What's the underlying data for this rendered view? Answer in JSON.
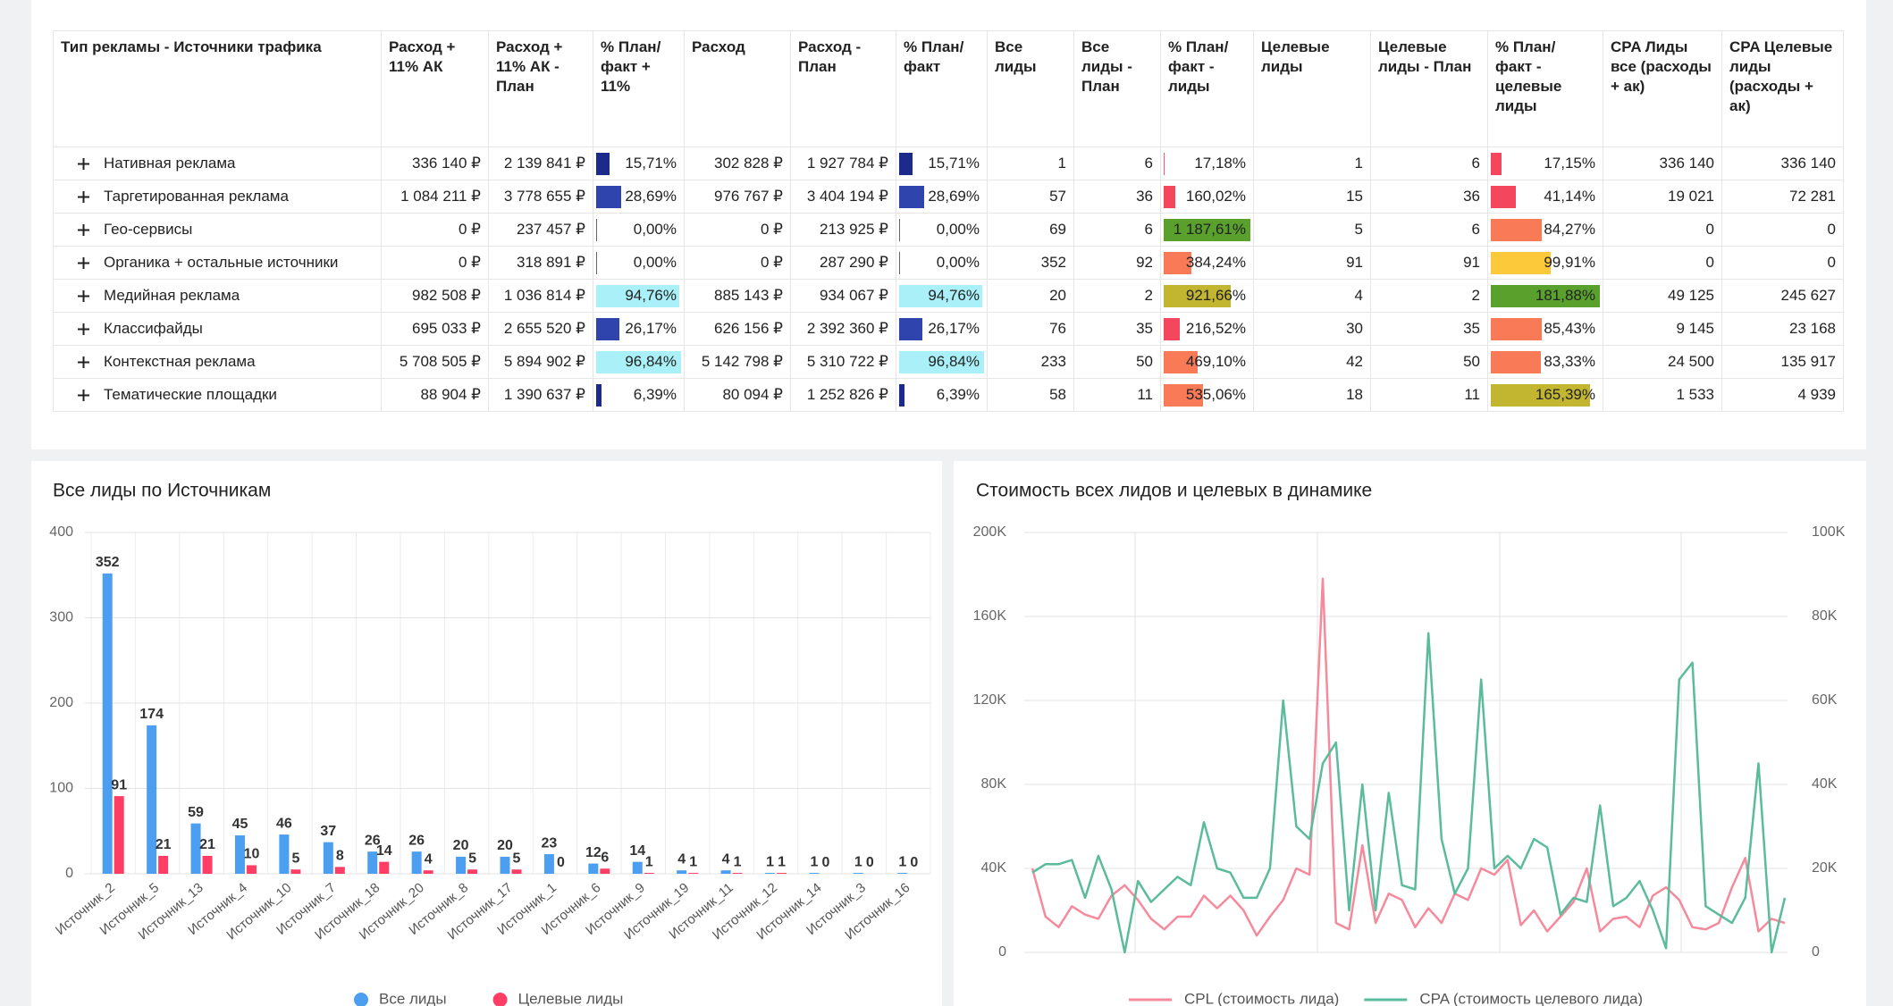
{
  "table": {
    "columns": [
      "Тип рекламы - Источники трафика",
      "Расход + 11% АК",
      "Расход + 11% АК - План",
      "% План/ факт + 11%",
      "Расход",
      "Расход - План",
      "% План/ факт",
      "Все лиды",
      "Все лиды - План",
      "% План/ факт - лиды",
      "Целевые лиды",
      "Целевые лиды - План",
      "% План/ факт - целевые лиды",
      "CPA Лиды все (расходы + ак)",
      "CPA Целевые лиды (расходы + ак)"
    ],
    "rows": [
      {
        "label": "Нативная реклама",
        "cells": [
          "336 140 ₽",
          "2 139 841 ₽",
          {
            "value": 15.71,
            "label": "15,71%",
            "color": "#1c2a8c"
          },
          "302 828 ₽",
          "1 927 784 ₽",
          {
            "value": 15.71,
            "label": "15,71%",
            "color": "#1c2a8c"
          },
          "1",
          "6",
          {
            "value": 17.18,
            "label": "17,18%",
            "color": "#f25a78"
          },
          "1",
          "6",
          {
            "value": 17.15,
            "label": "17,15%",
            "color": "#f4475e"
          },
          "336 140",
          "336 140"
        ]
      },
      {
        "label": "Таргетированная реклама",
        "cells": [
          "1 084 211 ₽",
          "3 778 655 ₽",
          {
            "value": 28.69,
            "label": "28,69%",
            "color": "#2f45ad"
          },
          "976 767 ₽",
          "3 404 194 ₽",
          {
            "value": 28.69,
            "label": "28,69%",
            "color": "#2f45ad"
          },
          "57",
          "36",
          {
            "value": 160.02,
            "label": "160,02%",
            "color": "#f4475e"
          },
          "15",
          "36",
          {
            "value": 41.14,
            "label": "41,14%",
            "color": "#f4475e"
          },
          "19 021",
          "72 281"
        ]
      },
      {
        "label": "Гео-сервисы",
        "cells": [
          "0 ₽",
          "237 457 ₽",
          {
            "value": 0,
            "label": "0,00%",
            "color": "#1c2a8c"
          },
          "0 ₽",
          "213 925 ₽",
          {
            "value": 0,
            "label": "0,00%",
            "color": "#1c2a8c"
          },
          "69",
          "6",
          {
            "value": 1187.61,
            "label": "1 187,61%",
            "color": "#5aa02c"
          },
          "5",
          "6",
          {
            "value": 84.27,
            "label": "84,27%",
            "color": "#f87a56"
          },
          "0",
          "0"
        ]
      },
      {
        "label": "Органика + остальные источники",
        "cells": [
          "0 ₽",
          "318 891 ₽",
          {
            "value": 0,
            "label": "0,00%",
            "color": "#1c2a8c"
          },
          "0 ₽",
          "287 290 ₽",
          {
            "value": 0,
            "label": "0,00%",
            "color": "#1c2a8c"
          },
          "352",
          "92",
          {
            "value": 384.24,
            "label": "384,24%",
            "color": "#f87a56"
          },
          "91",
          "91",
          {
            "value": 99.91,
            "label": "99,91%",
            "color": "#fcc93a"
          },
          "0",
          "0"
        ]
      },
      {
        "label": "Медийная реклама",
        "cells": [
          "982 508 ₽",
          "1 036 814 ₽",
          {
            "value": 94.76,
            "label": "94,76%",
            "color": "#aaf0f8"
          },
          "885 143 ₽",
          "934 067 ₽",
          {
            "value": 94.76,
            "label": "94,76%",
            "color": "#aaf0f8"
          },
          "20",
          "2",
          {
            "value": 921.66,
            "label": "921,66%",
            "color": "#c2b630"
          },
          "4",
          "2",
          {
            "value": 181.88,
            "label": "181,88%",
            "color": "#5aa02c"
          },
          "49 125",
          "245 627"
        ]
      },
      {
        "label": "Классифайды",
        "cells": [
          "695 033 ₽",
          "2 655 520 ₽",
          {
            "value": 26.17,
            "label": "26,17%",
            "color": "#2f45ad"
          },
          "626 156 ₽",
          "2 392 360 ₽",
          {
            "value": 26.17,
            "label": "26,17%",
            "color": "#2f45ad"
          },
          "76",
          "35",
          {
            "value": 216.52,
            "label": "216,52%",
            "color": "#f4475e"
          },
          "30",
          "35",
          {
            "value": 85.43,
            "label": "85,43%",
            "color": "#f87a56"
          },
          "9 145",
          "23 168"
        ]
      },
      {
        "label": "Контекстная реклама",
        "cells": [
          "5 708 505 ₽",
          "5 894 902 ₽",
          {
            "value": 96.84,
            "label": "96,84%",
            "color": "#aaf0f8"
          },
          "5 142 798 ₽",
          "5 310 722 ₽",
          {
            "value": 96.84,
            "label": "96,84%",
            "color": "#aaf0f8"
          },
          "233",
          "50",
          {
            "value": 469.1,
            "label": "469,10%",
            "color": "#f87a56"
          },
          "42",
          "50",
          {
            "value": 83.33,
            "label": "83,33%",
            "color": "#f87a56"
          },
          "24 500",
          "135 917"
        ]
      },
      {
        "label": "Тематические площадки",
        "cells": [
          "88 904 ₽",
          "1 390 637 ₽",
          {
            "value": 6.39,
            "label": "6,39%",
            "color": "#1c2a8c"
          },
          "80 094 ₽",
          "1 252 826 ₽",
          {
            "value": 6.39,
            "label": "6,39%",
            "color": "#1c2a8c"
          },
          "58",
          "11",
          {
            "value": 535.06,
            "label": "535,06%",
            "color": "#f87a56"
          },
          "18",
          "11",
          {
            "value": 165.39,
            "label": "165,39%",
            "color": "#c2b630"
          },
          "1 533",
          "4 939"
        ]
      }
    ]
  },
  "chart_data": [
    {
      "type": "bar",
      "title": "Все лиды по Источникам",
      "categories": [
        "Источник_2",
        "Источник_5",
        "Источник_13",
        "Источник_4",
        "Источник_10",
        "Источник_7",
        "Источник_18",
        "Источник_20",
        "Источник_8",
        "Источник_17",
        "Источник_1",
        "Источник_6",
        "Источник_9",
        "Источник_19",
        "Источник_11",
        "Источник_12",
        "Источник_14",
        "Источник_3",
        "Источник_16"
      ],
      "series": [
        {
          "name": "Все лиды",
          "color": "#4c9ff0",
          "values": [
            352,
            174,
            59,
            45,
            46,
            37,
            26,
            26,
            20,
            20,
            23,
            12,
            14,
            4,
            4,
            1,
            1,
            1,
            1
          ]
        },
        {
          "name": "Целевые лиды",
          "color": "#ff3d65",
          "values": [
            91,
            21,
            21,
            10,
            5,
            8,
            14,
            4,
            5,
            5,
            0,
            6,
            1,
            1,
            1,
            1,
            0,
            0,
            0
          ]
        }
      ],
      "ylim": [
        0,
        400
      ],
      "yticks": [
        0,
        100,
        200,
        300,
        400
      ],
      "grid": true
    },
    {
      "type": "line",
      "title": "Стоимость всех лидов и целевых в динамике",
      "series": [
        {
          "name": "CPL (стоимость лида)",
          "color": "#f58a9c",
          "axis": "y",
          "values": [
            40000,
            17000,
            12000,
            22000,
            18000,
            16000,
            27000,
            32000,
            25000,
            16000,
            11000,
            17000,
            17000,
            27000,
            21000,
            27000,
            20000,
            8000,
            17000,
            25000,
            40000,
            37000,
            178000,
            14000,
            11000,
            51000,
            14000,
            28000,
            25000,
            12000,
            21000,
            14000,
            28000,
            25000,
            40000,
            37000,
            44000,
            13000,
            20000,
            10000,
            17000,
            24000,
            40000,
            10000,
            16000,
            17000,
            12000,
            27000,
            31000,
            25000,
            12000,
            11000,
            14000,
            31000,
            45000,
            10000,
            16000,
            14000
          ]
        },
        {
          "name": "CPA (стоимость целевого лида)",
          "color": "#5bbb9d",
          "axis": "y2",
          "values": [
            19000,
            21000,
            21000,
            22000,
            13000,
            23000,
            15000,
            0,
            17000,
            12000,
            15000,
            18000,
            16000,
            31000,
            20000,
            19000,
            13000,
            13000,
            20000,
            60000,
            30000,
            27000,
            45000,
            50000,
            10000,
            40000,
            10000,
            38000,
            16000,
            15000,
            76000,
            27000,
            14000,
            20000,
            65000,
            20000,
            23000,
            20000,
            27000,
            25000,
            9000,
            13000,
            12000,
            35000,
            11000,
            13000,
            17000,
            10000,
            1000,
            65000,
            69000,
            11000,
            9000,
            7000,
            13000,
            45000,
            0,
            13000
          ]
        }
      ],
      "ylim": [
        0,
        200000
      ],
      "yticks": [
        {
          "value": 0,
          "label": "0"
        },
        {
          "value": 40000,
          "label": "40K"
        },
        {
          "value": 80000,
          "label": "80K"
        },
        {
          "value": 120000,
          "label": "120K"
        },
        {
          "value": 160000,
          "label": "160K"
        },
        {
          "value": 200000,
          "label": "200K"
        }
      ],
      "y2lim": [
        0,
        100000
      ],
      "y2ticks": [
        {
          "value": 0,
          "label": "0"
        },
        {
          "value": 20000,
          "label": "20K"
        },
        {
          "value": 40000,
          "label": "40K"
        },
        {
          "value": 60000,
          "label": "60K"
        },
        {
          "value": 80000,
          "label": "80K"
        },
        {
          "value": 100000,
          "label": "100K"
        }
      ],
      "grid": true
    }
  ]
}
